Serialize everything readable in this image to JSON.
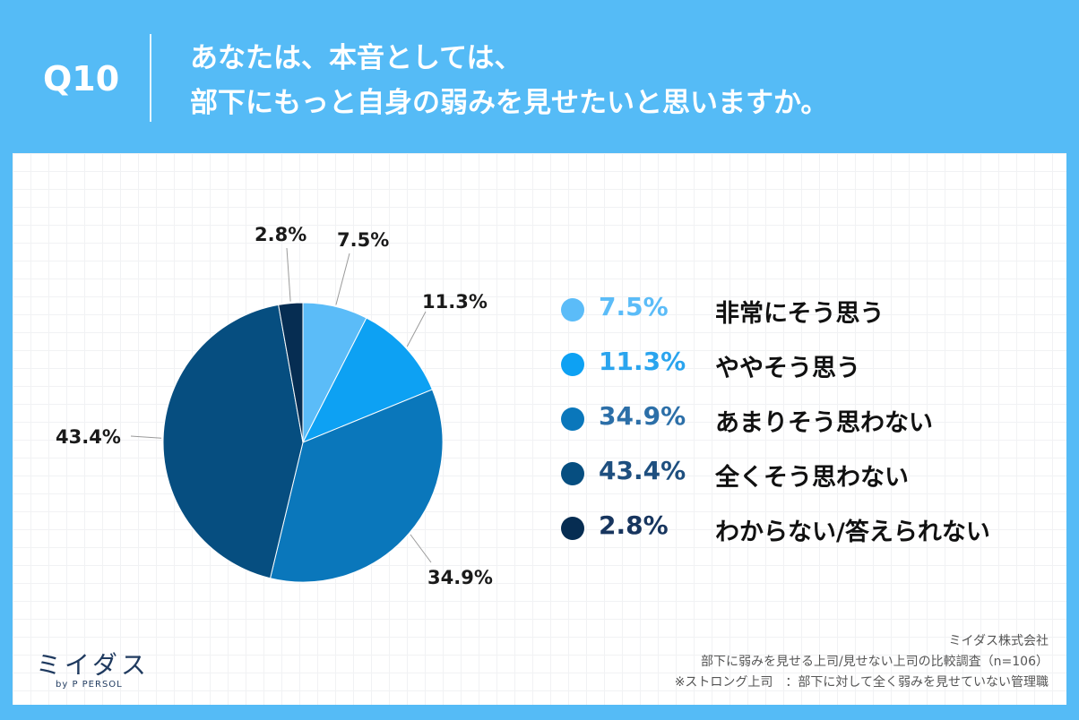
{
  "header": {
    "question_number": "Q10",
    "title_line1": "あなたは、本音としては、",
    "title_line2": "部下にもっと自身の弱みを見せたいと思いますか。"
  },
  "chart_data": {
    "type": "pie",
    "title": "",
    "start_angle_deg": 0,
    "direction": "clockwise",
    "legend_position": "right",
    "slices": [
      {
        "label": "非常にそう思う",
        "value": 7.5,
        "value_label": "7.5%",
        "color": "#5bbcf8"
      },
      {
        "label": "ややそう思う",
        "value": 11.3,
        "value_label": "11.3%",
        "color": "#0da1f3"
      },
      {
        "label": "あまりそう思わない",
        "value": 34.9,
        "value_label": "34.9%",
        "color": "#0a77bb"
      },
      {
        "label": "全くそう思わない",
        "value": 43.4,
        "value_label": "43.4%",
        "color": "#064e80"
      },
      {
        "label": "わからない/答えられない",
        "value": 2.8,
        "value_label": "2.8%",
        "color": "#062d52"
      }
    ]
  },
  "legend": {
    "pct_colors": [
      "#5bbcf8",
      "#2aa4ee",
      "#2c6fa8",
      "#1e4f7f",
      "#17355e"
    ]
  },
  "logo": {
    "main": "ミイダス",
    "sub": "by P PERSOL"
  },
  "footer": {
    "company": "ミイダス株式会社",
    "survey": "部下に弱みを見せる上司/見せない上司の比較調査（n=106）",
    "note": "※ストロング上司　：部下に対して全く弱みを見せていない管理職"
  }
}
